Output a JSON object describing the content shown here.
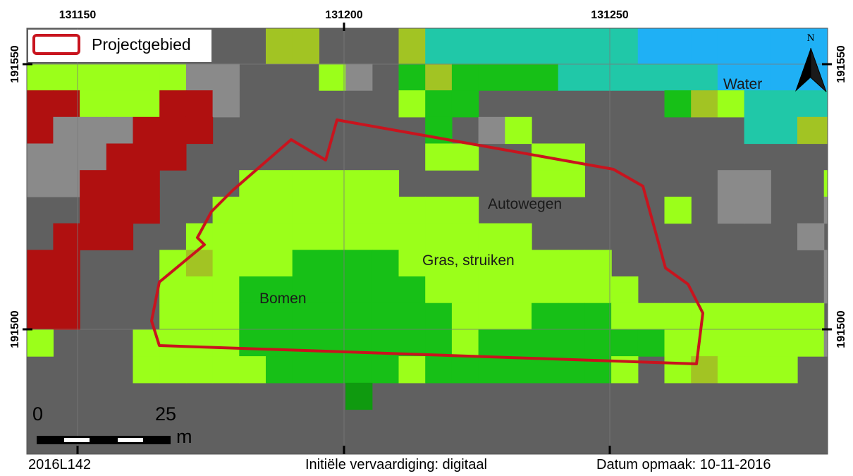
{
  "colors": {
    "road": "#606060",
    "road_light": "#8a8a8a",
    "grass": "#9bff1a",
    "tree": "#17c017",
    "tree_dark": "#0f9a0f",
    "olive": "#a2c423",
    "water": "#1fb0f5",
    "water_edge": "#20c8a8",
    "built": "#b01010",
    "project_outline": "#c8141e"
  },
  "legend": {
    "swatch_icon": "project-area-swatch",
    "label": "Projectgebied"
  },
  "coordinates": {
    "x_labels": [
      "131150",
      "131200",
      "131250"
    ],
    "y_labels": [
      "191550",
      "191500"
    ]
  },
  "map_labels": {
    "water": "Water",
    "roads": "Autowegen",
    "grass": "Gras, struiken",
    "trees": "Bomen"
  },
  "north_arrow": {
    "icon": "north-arrow-icon",
    "letter": "N"
  },
  "scale_bar": {
    "start": "0",
    "end": "25",
    "unit": "m"
  },
  "footer": {
    "id": "2016L142",
    "method": "Initiële vervaardiging: digitaal",
    "date": "Datum opmaak: 10-11-2016"
  }
}
